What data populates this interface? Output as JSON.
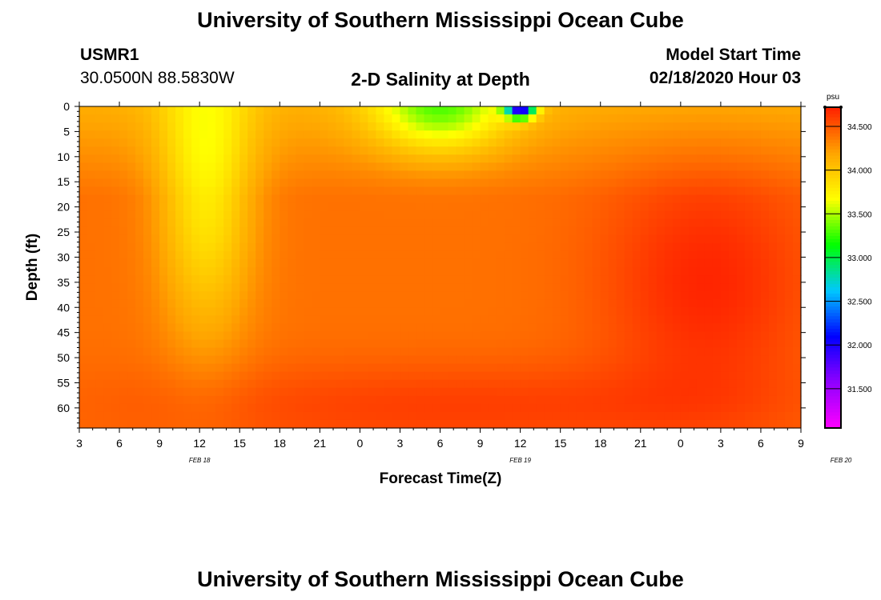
{
  "header": {
    "title_top": "University of Southern Mississippi Ocean Cube",
    "station_id": "USMR1",
    "location": "30.0500N 88.5830W",
    "chart_title": "2-D Salinity at Depth",
    "model_label": "Model Start Time",
    "model_time": "02/18/2020 Hour 03",
    "title_bottom": "University of Southern Mississippi Ocean Cube"
  },
  "chart_data": {
    "type": "heatmap",
    "title": "2-D Salinity at Depth",
    "xlabel": "Forecast Time(Z)",
    "ylabel": "Depth (ft)",
    "units": "psu",
    "x_range_hours_from_start": [
      0,
      54
    ],
    "x_tick_labels": [
      "3",
      "6",
      "9",
      "12",
      "15",
      "18",
      "21",
      "0",
      "3",
      "6",
      "9",
      "12",
      "15",
      "18",
      "21",
      "0",
      "3",
      "6",
      "9"
    ],
    "date_labels": [
      {
        "label": "FEB 18",
        "hours_from_start": 9
      },
      {
        "label": "FEB 19",
        "hours_from_start": 33
      },
      {
        "label": "FEB 20",
        "hours_from_start": 57
      }
    ],
    "y_range_ft": [
      0,
      64
    ],
    "y_tick_labels": [
      "0",
      "5",
      "10",
      "15",
      "20",
      "25",
      "30",
      "35",
      "40",
      "45",
      "50",
      "55",
      "60"
    ],
    "colorbar": {
      "range": [
        31.05,
        34.72
      ],
      "tick_labels": [
        "31.500",
        "32.000",
        "32.500",
        "33.000",
        "33.500",
        "34.000",
        "34.500"
      ],
      "colors": [
        "#ff00ff",
        "#9000ff",
        "#0000ff",
        "#00c8ff",
        "#00ff00",
        "#ffff00",
        "#ffa500",
        "#ff2000"
      ]
    },
    "salinity_field": {
      "base": 34.4,
      "features": [
        {
          "desc": "fresher column near Feb 18 12Z",
          "hour": 9.5,
          "depth_ft": 15,
          "hour_spread": 3.5,
          "depth_spread": 30,
          "delta": -0.62
        },
        {
          "desc": "green near-surface band Feb 19 early",
          "hour": 27,
          "depth_ft": 0,
          "hour_spread": 5,
          "depth_spread": 9,
          "delta": -0.85
        },
        {
          "desc": "surface minimum Feb 19 12Z",
          "hour": 33,
          "depth_ft": 0,
          "hour_spread": 1.1,
          "depth_spread": 2.2,
          "delta": -2.4
        },
        {
          "desc": "saltier water late Feb 19 - Feb 20",
          "hour": 47,
          "depth_ft": 35,
          "hour_spread": 8,
          "depth_spread": 25,
          "delta": 0.3
        },
        {
          "desc": "saltier bottom water",
          "hour": 28,
          "depth_ft": 60,
          "hour_spread": 25,
          "depth_spread": 9,
          "delta": 0.2
        }
      ],
      "shallow_layer": {
        "max_depth_ft": 18,
        "delta": -0.25
      }
    }
  }
}
